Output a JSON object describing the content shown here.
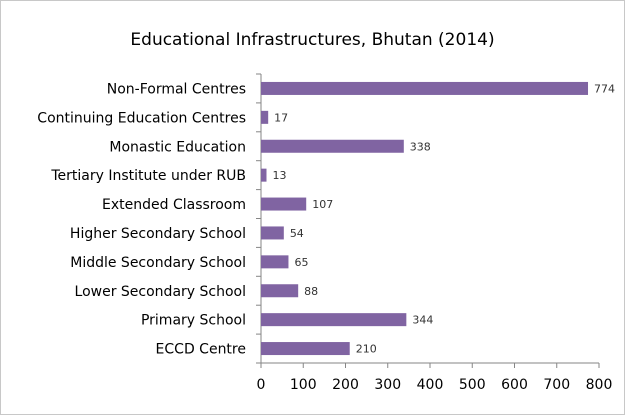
{
  "chart_data": {
    "type": "bar",
    "orientation": "horizontal",
    "title": "Educational Infrastructures, Bhutan (2014)",
    "categories": [
      "Non-Formal Centres",
      "Continuing Education Centres",
      "Monastic Education",
      "Tertiary Institute under RUB",
      "Extended Classroom",
      "Higher Secondary School",
      "Middle Secondary School",
      "Lower Secondary School",
      "Primary School",
      "ECCD Centre"
    ],
    "values": [
      774,
      17,
      338,
      13,
      107,
      54,
      65,
      88,
      344,
      210
    ],
    "xlim": [
      0,
      800
    ],
    "xticks": [
      0,
      100,
      200,
      300,
      400,
      500,
      600,
      700,
      800
    ],
    "grid": false,
    "legend": "none",
    "bar_color": "#8064a2"
  }
}
